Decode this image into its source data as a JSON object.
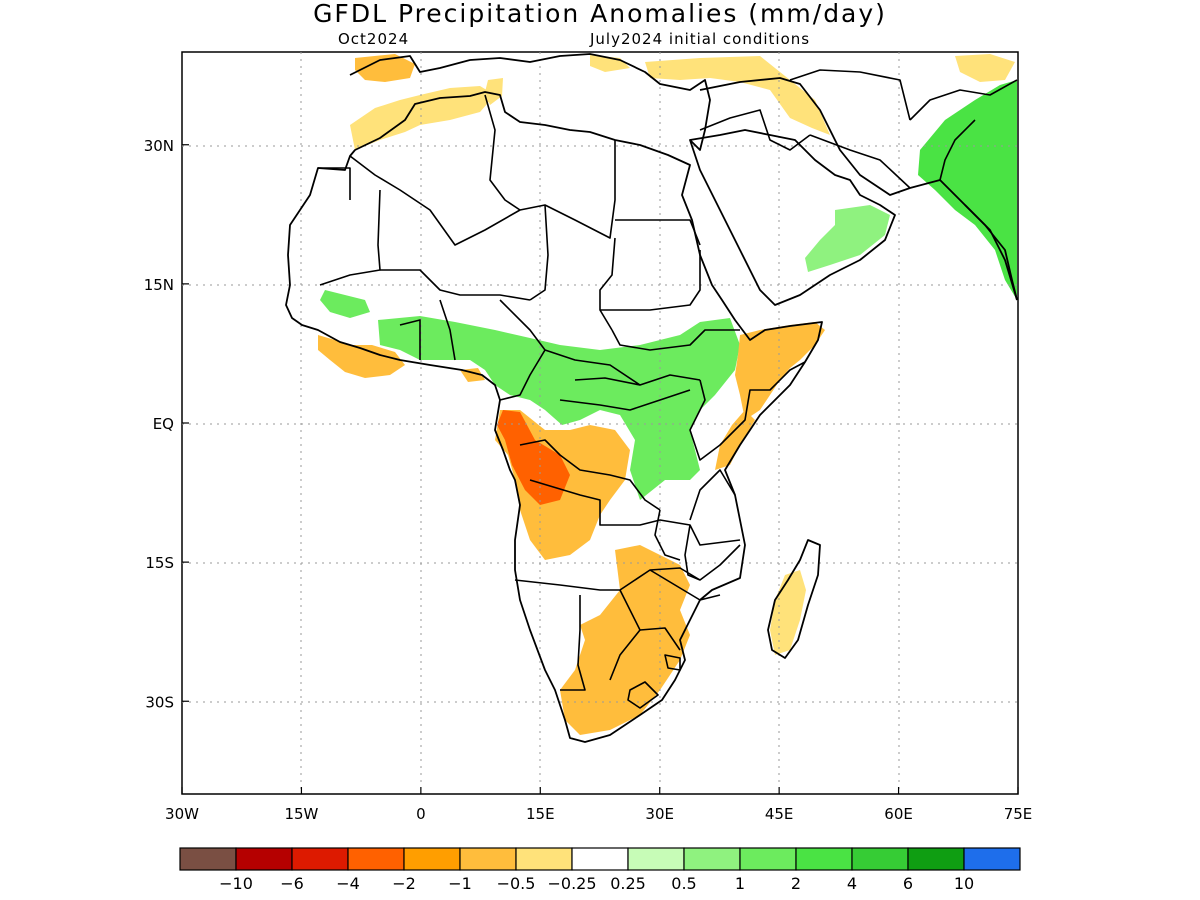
{
  "title": "GFDL Precipitation Anomalies (mm/day)",
  "subtitle_left": "Oct2024",
  "subtitle_right": "July2024 initial conditions",
  "map": {
    "lon_range": [
      -30,
      75
    ],
    "lat_range": [
      -40,
      40
    ],
    "x_ticks": [
      {
        "value": -30,
        "label": "30W"
      },
      {
        "value": -15,
        "label": "15W"
      },
      {
        "value": 0,
        "label": "0"
      },
      {
        "value": 15,
        "label": "15E"
      },
      {
        "value": 30,
        "label": "30E"
      },
      {
        "value": 45,
        "label": "45E"
      },
      {
        "value": 60,
        "label": "60E"
      },
      {
        "value": 75,
        "label": "75E"
      }
    ],
    "y_ticks": [
      {
        "value": 30,
        "label": "30N"
      },
      {
        "value": 15,
        "label": "15N"
      },
      {
        "value": 0,
        "label": "EQ"
      },
      {
        "value": -15,
        "label": "15S"
      },
      {
        "value": -30,
        "label": "30S"
      }
    ]
  },
  "colorbar": {
    "colors": [
      "#7a4f43",
      "#b50000",
      "#dd1a00",
      "#ff6100",
      "#ff9e00",
      "#ffbd3c",
      "#ffe27a",
      "#ffffff",
      "#c7fcb7",
      "#8ff27f",
      "#6ceb5e",
      "#4ae344",
      "#36cc35",
      "#0f9e12",
      "#1e6eeb"
    ],
    "labels": [
      "-10",
      "-6",
      "-4",
      "-2",
      "-1",
      "-0.5",
      "-0.25",
      "0.25",
      "0.5",
      "1",
      "2",
      "4",
      "6",
      "10"
    ]
  },
  "anomaly_regions": [
    {
      "name": "morocco-dry",
      "color": "#ffe27a"
    },
    {
      "name": "spain-dry",
      "color": "#ffbd3c"
    },
    {
      "name": "tunisia-dry",
      "color": "#ffe27a"
    },
    {
      "name": "italy-dry",
      "color": "#ffe27a"
    },
    {
      "name": "turkey-dry",
      "color": "#ffe27a"
    },
    {
      "name": "sahel-green",
      "color": "#6ceb5e"
    },
    {
      "name": "sudan-ethiopia-green",
      "color": "#4ae344"
    },
    {
      "name": "congo-green",
      "color": "#8ff27f"
    },
    {
      "name": "guinea-coast-dry",
      "color": "#ffbd3c"
    },
    {
      "name": "horn-dry",
      "color": "#ffbd3c"
    },
    {
      "name": "kenya-coast-dry",
      "color": "#ffbd3c"
    },
    {
      "name": "gabon-congo-dry",
      "color": "#ff6100"
    },
    {
      "name": "angola-dry",
      "color": "#ffbd3c"
    },
    {
      "name": "southern-africa-dry",
      "color": "#ffbd3c"
    },
    {
      "name": "madagascar-dry",
      "color": "#ffe27a"
    },
    {
      "name": "arabia-green",
      "color": "#8ff27f"
    },
    {
      "name": "south-asia-green",
      "color": "#4ae344"
    }
  ]
}
